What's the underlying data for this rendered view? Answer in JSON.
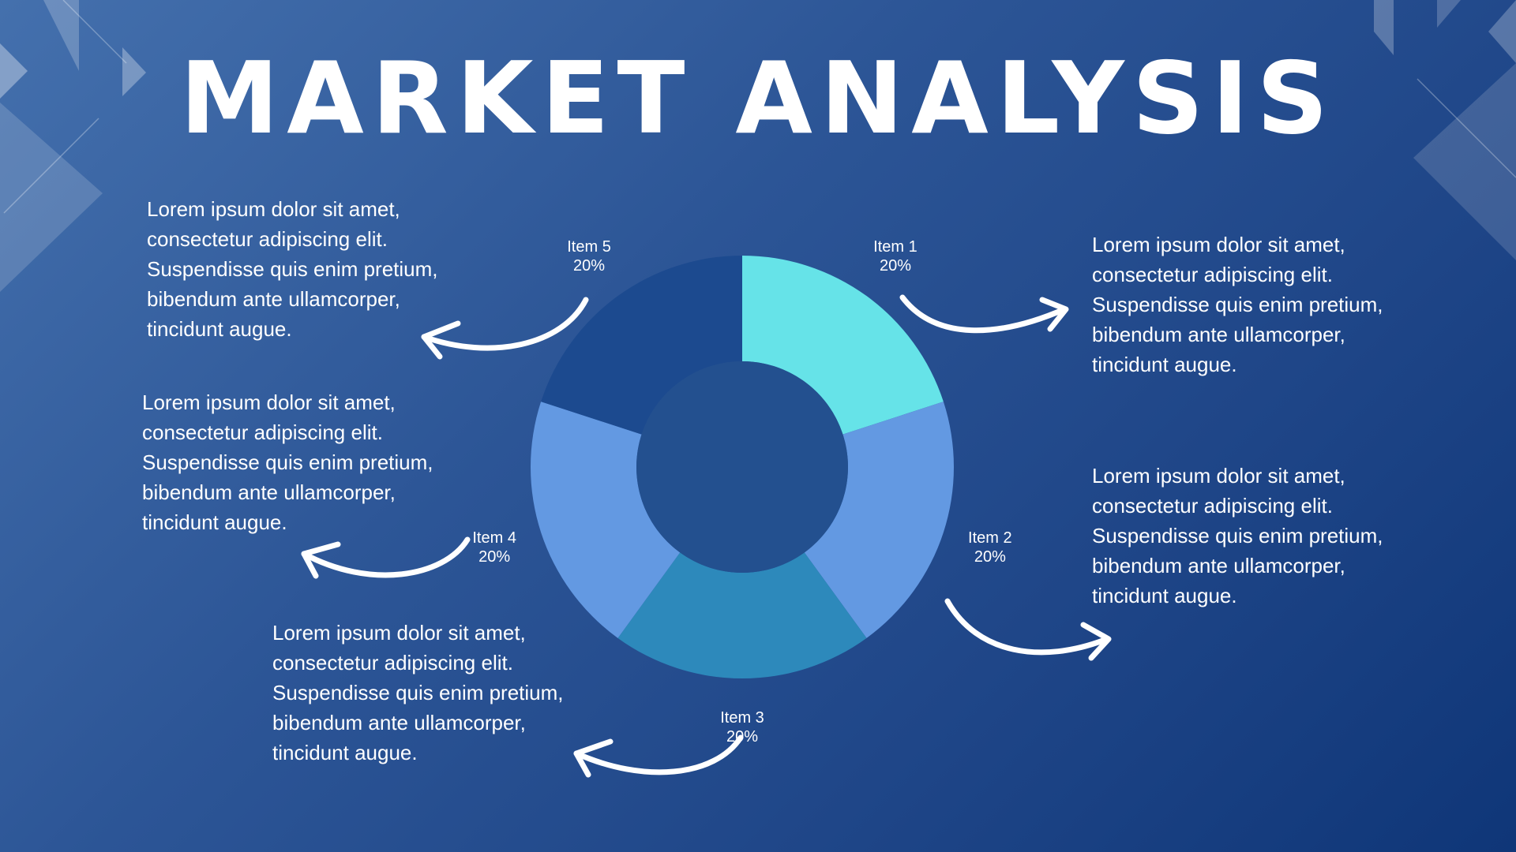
{
  "title": "MARKET ANALYSIS",
  "notes": [
    "Lorem ipsum dolor sit amet,\nconsectetur adipiscing elit.\nSuspendisse quis enim pretium,\nbibendum ante ullamcorper,\ntincidunt augue.",
    "Lorem ipsum dolor sit amet,\nconsectetur adipiscing elit.\nSuspendisse quis enim pretium,\nbibendum ante ullamcorper,\ntincidunt augue.",
    "Lorem ipsum dolor sit amet,\nconsectetur adipiscing elit.\nSuspendisse quis enim pretium,\nbibendum ante ullamcorper,\ntincidunt augue.",
    "Lorem ipsum dolor sit amet,\nconsectetur adipiscing elit.\nSuspendisse quis enim pretium,\nbibendum ante ullamcorper,\ntincidunt augue.",
    "Lorem ipsum dolor sit amet,\nconsectetur adipiscing elit.\nSuspendisse quis enim pretium,\nbibendum ante ullamcorper,\ntincidunt augue."
  ],
  "chart_data": {
    "type": "pie",
    "style": "donut",
    "categories": [
      "Item 1",
      "Item 2",
      "Item 3",
      "Item 4",
      "Item 5"
    ],
    "values": [
      20,
      20,
      20,
      20,
      20
    ],
    "value_labels": [
      "20%",
      "20%",
      "20%",
      "20%",
      "20%"
    ],
    "colors": [
      "#66e3e8",
      "#6399e2",
      "#2d89bb",
      "#6399e2",
      "#1c4a8f"
    ],
    "center_color": "#23508f",
    "legend": "none"
  }
}
